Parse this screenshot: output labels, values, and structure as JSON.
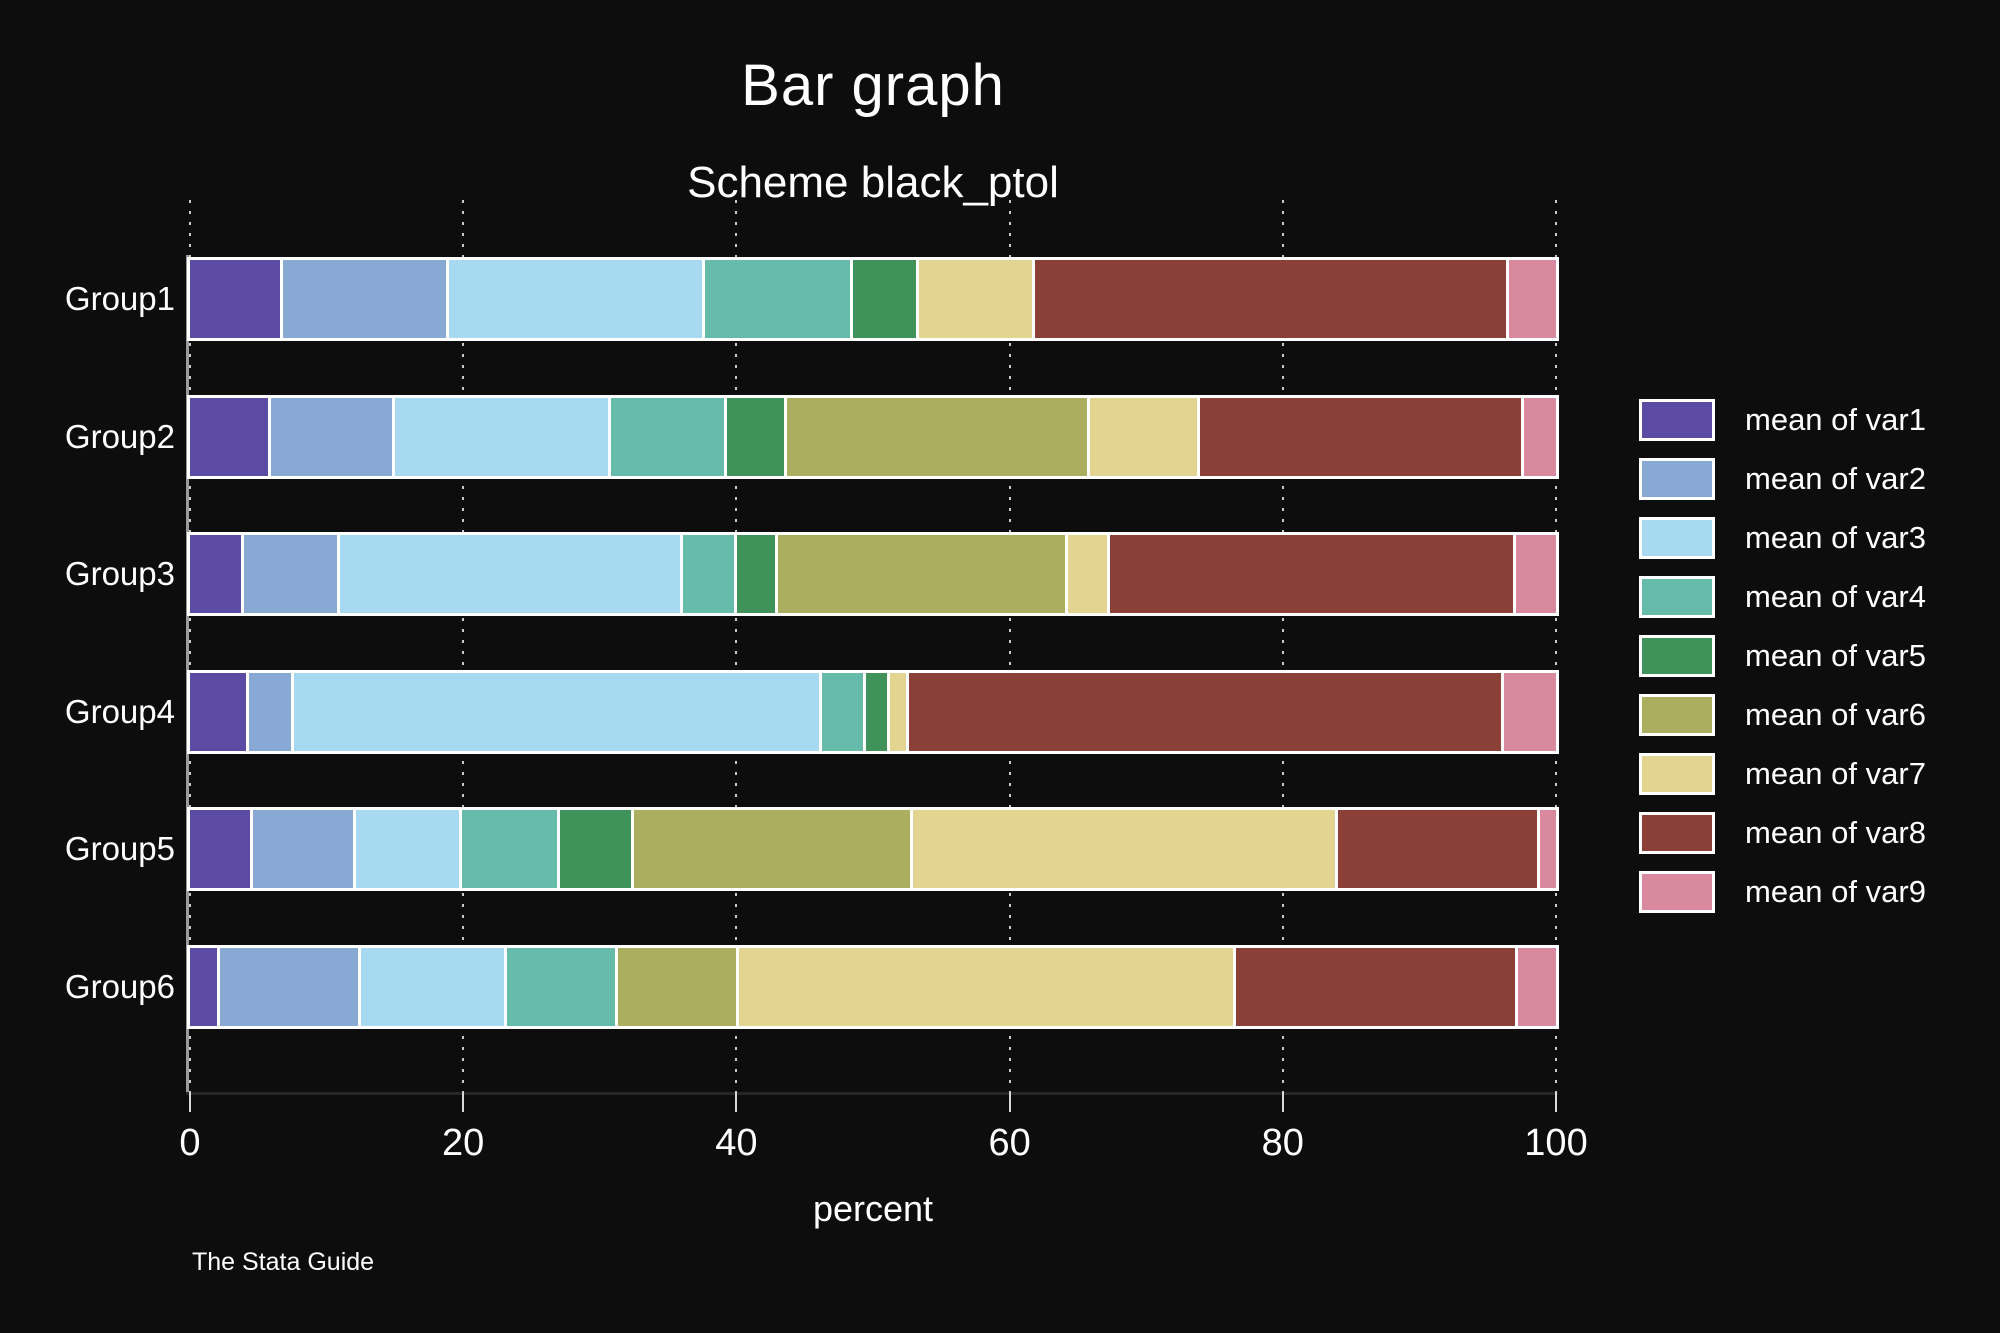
{
  "caption": "The Stata Guide",
  "colors": {
    "background": "#0d0d0d",
    "text": "#ffffff",
    "gridline": "#c8c8c8",
    "bar_outline": "#ffffff",
    "axis_line": "#9b9b9b"
  },
  "chart_data": {
    "type": "bar",
    "orientation": "horizontal",
    "stacked": true,
    "title": "Bar graph",
    "subtitle": "Scheme black_ptol",
    "xlabel": "percent",
    "ylabel": "",
    "xlim": [
      0,
      100
    ],
    "xticks": [
      0,
      20,
      40,
      60,
      80,
      100
    ],
    "grid": "dotted-vertical",
    "legend_position": "right",
    "categories": [
      "Group1",
      "Group2",
      "Group3",
      "Group4",
      "Group5",
      "Group6"
    ],
    "series": [
      {
        "name": "mean of var1",
        "color": "#5b4ba2",
        "values": [
          6.7,
          5.8,
          3.8,
          4.2,
          4.5,
          2.0
        ]
      },
      {
        "name": "mean of var2",
        "color": "#88a9d4",
        "values": [
          12.1,
          9.0,
          6.9,
          3.1,
          7.4,
          10.3
        ]
      },
      {
        "name": "mean of var3",
        "color": "#a7daf0",
        "values": [
          18.8,
          15.9,
          25.4,
          39.0,
          7.7,
          10.6
        ]
      },
      {
        "name": "mean of var4",
        "color": "#67bbaa",
        "values": [
          10.8,
          8.4,
          3.8,
          3.1,
          7.1,
          8.0
        ]
      },
      {
        "name": "mean of var5",
        "color": "#3f925a",
        "values": [
          4.7,
          4.3,
          2.8,
          1.5,
          5.3,
          0.0
        ]
      },
      {
        "name": "mean of var6",
        "color": "#abad5f",
        "values": [
          0.0,
          22.3,
          21.4,
          0.0,
          20.5,
          8.8
        ]
      },
      {
        "name": "mean of var7",
        "color": "#e3d491",
        "values": [
          8.4,
          8.0,
          2.9,
          1.2,
          31.5,
          36.7
        ]
      },
      {
        "name": "mean of var8",
        "color": "#8a4037",
        "values": [
          35.0,
          23.9,
          30.0,
          44.0,
          14.8,
          20.8
        ]
      },
      {
        "name": "mean of var9",
        "color": "#d8899e",
        "values": [
          3.5,
          2.4,
          3.0,
          3.9,
          1.2,
          2.8
        ]
      }
    ]
  }
}
